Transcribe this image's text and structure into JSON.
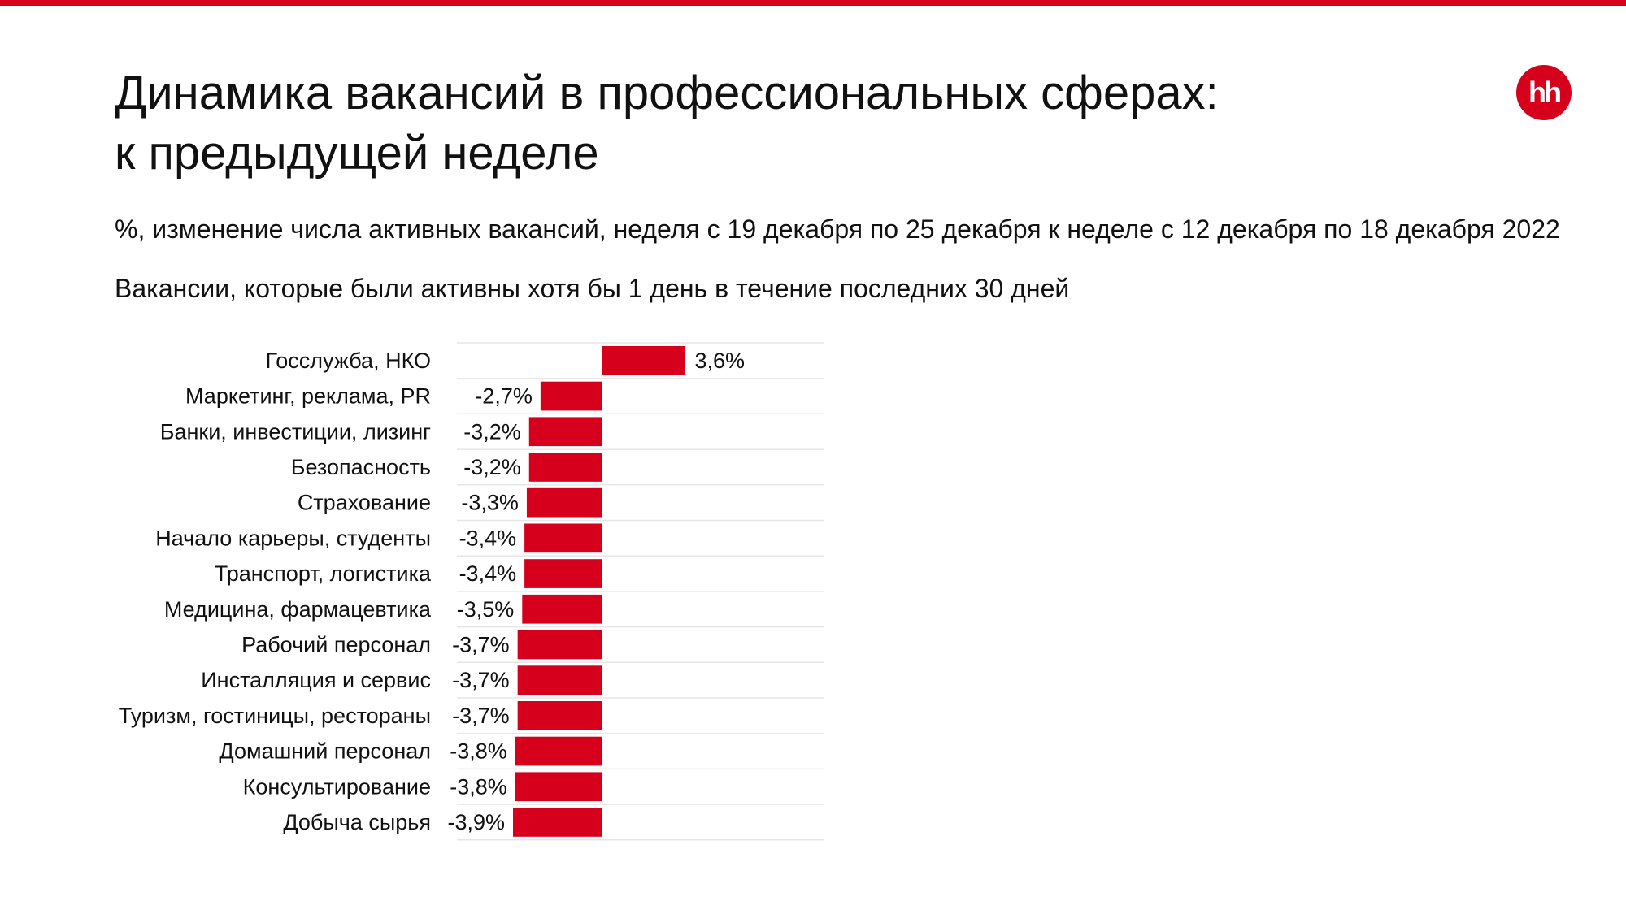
{
  "brand": {
    "logo_text": "hh",
    "accent_color": "#d6001c"
  },
  "header": {
    "title_line1": "Динамика вакансий в профессиональных сферах:",
    "title_line2": "к предыдущей неделе",
    "subtitle": "%, изменение числа активных вакансий, неделя с 19 декабря по 25 декабря к неделе с 12 декабря по 18 декабря 2022",
    "note": "Вакансии, которые были активны хотя бы 1 день в течение последних 30 дней"
  },
  "chart_data": {
    "type": "bar",
    "orientation": "horizontal",
    "categories": [
      "Госслужба, НКО",
      "Маркетинг, реклама, PR",
      "Банки, инвестиции, лизинг",
      "Безопасность",
      "Страхование",
      "Начало карьеры, студенты",
      "Транспорт, логистика",
      "Медицина, фармацевтика",
      "Рабочий персонал",
      "Инсталляция и сервис",
      "Туризм, гостиницы, рестораны",
      "Домашний персонал",
      "Консультирование",
      "Добыча сырья"
    ],
    "values": [
      3.6,
      -2.7,
      -3.2,
      -3.2,
      -3.3,
      -3.4,
      -3.4,
      -3.5,
      -3.7,
      -3.7,
      -3.7,
      -3.8,
      -3.8,
      -3.9
    ],
    "labels": [
      "3,6%",
      "-2,7%",
      "-3,2%",
      "-3,2%",
      "-3,3%",
      "-3,4%",
      "-3,4%",
      "-3,5%",
      "-3,7%",
      "-3,7%",
      "-3,7%",
      "-3,8%",
      "-3,8%",
      "-3,9%"
    ],
    "unit": "%",
    "title": "",
    "xlabel": "",
    "ylabel": "",
    "grid": "horizontal row separators",
    "legend": "none",
    "bar_color": "#d6001c"
  }
}
